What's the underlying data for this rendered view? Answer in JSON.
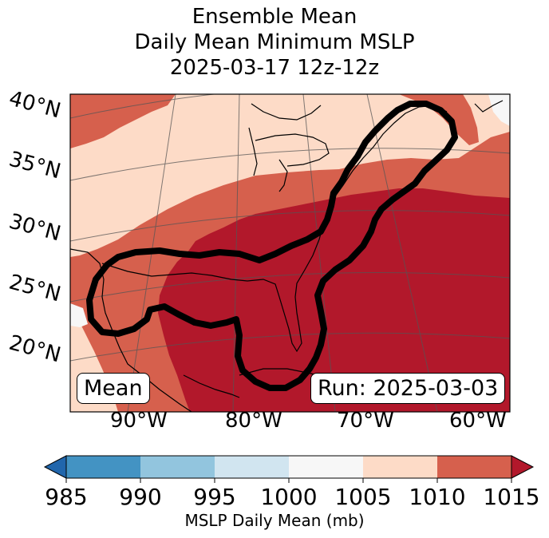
{
  "title": {
    "line1": "Ensemble Mean",
    "line2": "Daily Mean Minimum MSLP",
    "line3": "2025-03-17 12z-12z"
  },
  "map": {
    "lat_labels": [
      "40°N",
      "35°N",
      "30°N",
      "25°N",
      "20°N"
    ],
    "lon_labels": [
      "90°W",
      "80°W",
      "70°W",
      "60°W"
    ],
    "mean_label": "Mean",
    "run_label": "Run: 2025-03-03"
  },
  "colorbar": {
    "ticks": [
      "985",
      "990",
      "995",
      "1000",
      "1005",
      "1010",
      "1015"
    ],
    "label": "MSLP Daily Mean (mb)",
    "colors": {
      "under": "#2166ac",
      "b985_990": "#4393c3",
      "b990_995": "#92c5de",
      "b995_1000": "#d1e5f0",
      "b1000_1005": "#f7f7f7",
      "b1005_1010": "#fddbc7",
      "b1010_1015": "#d6604d",
      "over": "#b2182b"
    }
  }
}
